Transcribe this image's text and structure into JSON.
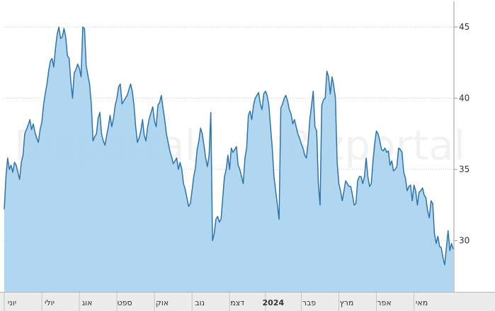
{
  "chart_data": {
    "type": "area",
    "title": "",
    "xlabel": "",
    "ylabel": "",
    "ylim": [
      26.4,
      46.6
    ],
    "y_ticks": [
      30,
      35,
      40,
      45
    ],
    "y_axis_side": "right",
    "grid": "horizontal dotted",
    "watermark": [
      "Bizportal",
      "Bizportal"
    ],
    "x_month_labels": [
      {
        "label": "יוני",
        "index": 0,
        "bold": false
      },
      {
        "label": "יולי",
        "index": 22,
        "bold": false
      },
      {
        "label": "אוג",
        "index": 44,
        "bold": false
      },
      {
        "label": "ספט",
        "index": 66,
        "bold": false
      },
      {
        "label": "אוק",
        "index": 88,
        "bold": false
      },
      {
        "label": "נוב",
        "index": 110,
        "bold": false
      },
      {
        "label": "דצמ",
        "index": 132,
        "bold": false
      },
      {
        "label": "2024",
        "index": 153,
        "bold": true
      },
      {
        "label": "פבר",
        "index": 174,
        "bold": false
      },
      {
        "label": "מרץ",
        "index": 196,
        "bold": false
      },
      {
        "label": "אפר",
        "index": 218,
        "bold": false
      },
      {
        "label": "מאי",
        "index": 240,
        "bold": false
      }
    ],
    "series": [
      {
        "values": [
          32.2,
          34.5,
          35.8,
          35.0,
          35.3,
          34.8,
          35.5,
          35.3,
          34.8,
          34.3,
          35.5,
          36.0,
          37.5,
          37.8,
          38.1,
          38.5,
          37.8,
          38.2,
          37.6,
          37.2,
          36.9,
          37.8,
          38.3,
          39.5,
          40.3,
          41.0,
          41.9,
          42.6,
          42.8,
          42.2,
          43.5,
          44.5,
          45.0,
          44.2,
          44.3,
          44.9,
          44.3,
          43.0,
          42.8,
          41.2,
          40.0,
          41.8,
          42.0,
          42.4,
          42.1,
          41.5,
          45.0,
          44.9,
          42.3,
          41.6,
          41.0,
          39.6,
          37.0,
          37.3,
          37.5,
          38.6,
          39.0,
          37.5,
          37.0,
          36.7,
          37.4,
          38.0,
          38.8,
          38.0,
          38.6,
          39.5,
          40.0,
          40.8,
          41.0,
          39.6,
          39.8,
          40.0,
          40.2,
          40.6,
          41.0,
          40.5,
          39.5,
          38.0,
          36.9,
          37.2,
          37.7,
          38.5,
          37.4,
          37.0,
          38.0,
          38.6,
          39.0,
          39.4,
          38.4,
          38.0,
          39.5,
          39.7,
          40.2,
          39.3,
          38.5,
          37.5,
          36.9,
          36.3,
          35.9,
          35.4,
          35.6,
          35.8,
          35.0,
          35.5,
          35.0,
          34.0,
          33.6,
          33.0,
          32.4,
          32.6,
          33.5,
          34.5,
          35.1,
          36.4,
          37.0,
          37.9,
          37.5,
          36.7,
          35.8,
          35.2,
          36.0,
          39.0,
          30.0,
          30.5,
          31.5,
          31.7,
          31.3,
          31.5,
          33.0,
          34.5,
          35.0,
          36.0,
          35.0,
          36.5,
          36.2,
          36.4,
          36.6,
          35.3,
          35.0,
          34.5,
          34.0,
          35.8,
          36.5,
          38.8,
          39.1,
          38.5,
          39.5,
          40.0,
          40.2,
          40.4,
          39.6,
          39.2,
          40.3,
          40.5,
          40.2,
          39.5,
          38.0,
          36.5,
          34.5,
          33.5,
          32.5,
          31.5,
          39.3,
          39.6,
          40.0,
          40.2,
          39.8,
          39.2,
          38.9,
          38.2,
          38.5,
          38.0,
          37.5,
          37.2,
          36.8,
          36.5,
          36.0,
          35.8,
          36.9,
          38.5,
          39.5,
          40.5,
          38.0,
          37.7,
          34.0,
          32.5,
          39.5,
          39.9,
          40.0,
          41.9,
          41.5,
          40.3,
          41.5,
          40.9,
          40.0,
          35.5,
          34.0,
          33.5,
          32.8,
          33.5,
          34.2,
          34.0,
          33.8,
          33.8,
          33.2,
          32.5,
          32.6,
          34.2,
          34.5,
          34.5,
          34.0,
          34.5,
          35.8,
          34.5,
          33.8,
          34.0,
          35.6,
          36.8,
          37.7,
          37.5,
          37.0,
          36.4,
          36.3,
          36.5,
          36.2,
          36.3,
          35.3,
          35.6,
          34.9,
          35.0,
          35.2,
          36.5,
          36.4,
          36.2,
          34.8,
          34.4,
          33.5,
          33.8,
          33.9,
          32.8,
          33.9,
          33.5,
          32.5,
          33.4,
          33.5,
          33.7,
          33.2,
          33.0,
          32.1,
          31.6,
          32.8,
          32.6,
          30.5,
          29.8,
          30.3,
          29.6,
          29.5,
          28.8,
          28.3,
          29.5,
          30.7,
          29.3,
          29.8,
          29.4
        ]
      }
    ]
  }
}
